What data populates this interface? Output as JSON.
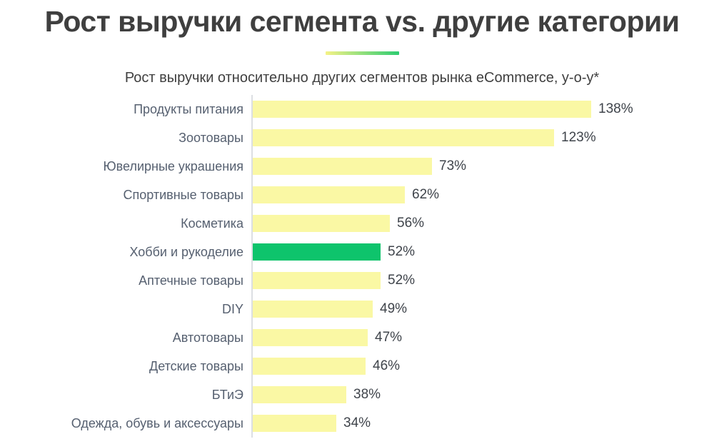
{
  "header": {
    "title": "Рост выручки сегмента vs. другие категории",
    "subtitle": "Рост выручки относительно других сегментов рынка eCommerce, y-o-y*"
  },
  "colors": {
    "bar_default": "#faf8a4",
    "bar_highlight": "#0ec46c",
    "divider_gradient_start": "#f5f287",
    "divider_gradient_end": "#2ecc71",
    "axis_line": "#dcdfe3",
    "title_text": "#3f3f3f",
    "label_text": "#566070",
    "value_text": "#3f444b"
  },
  "chart_data": {
    "type": "bar",
    "orientation": "horizontal",
    "title": "Рост выручки сегмента vs. другие категории",
    "subtitle": "Рост выручки относительно других сегментов рынка eCommerce, y-o-y*",
    "categories": [
      "Продукты питания",
      "Зоотовары",
      "Ювелирные украшения",
      "Спортивные товары",
      "Косметика",
      "Хобби и рукоделие",
      "Аптечные товары",
      "DIY",
      "Автотовары",
      "Детские товары",
      "БТиЭ",
      "Одежда, обувь и аксессуары"
    ],
    "values": [
      138,
      123,
      73,
      62,
      56,
      52,
      52,
      49,
      47,
      46,
      38,
      34
    ],
    "value_suffix": "%",
    "highlight_category": "Хобби и рукоделие",
    "xlabel": "",
    "ylabel": "",
    "xlim": [
      0,
      138
    ],
    "grid": false,
    "legend_position": "none",
    "data_labels": true
  }
}
